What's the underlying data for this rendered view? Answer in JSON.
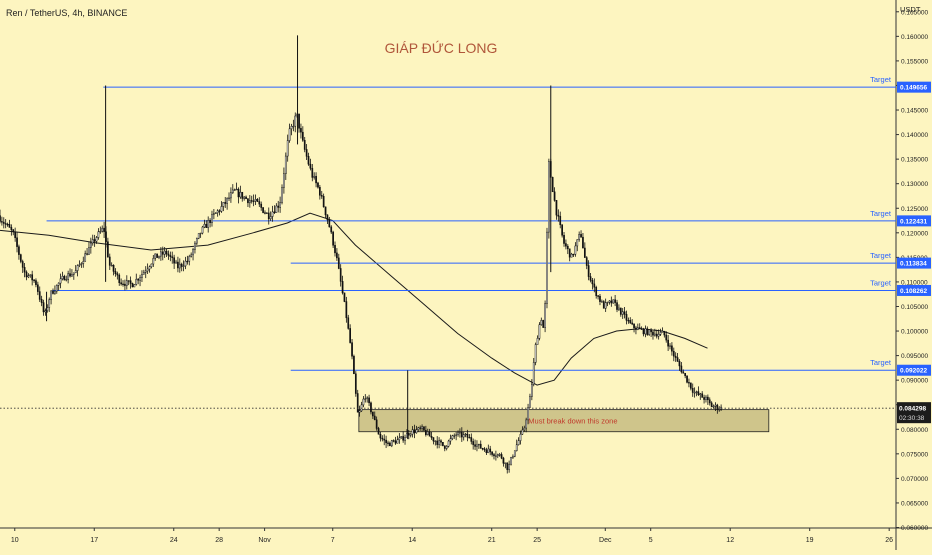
{
  "header": {
    "symbol_line": "Ren / TetherUS, 4h, BINANCE"
  },
  "chart_data": {
    "type": "candlestick",
    "title": "GIÁP ĐỨC LONG",
    "y_unit": "USDT",
    "ylim": [
      0.0599,
      0.1674
    ],
    "y_ticks": [
      "0.165000",
      "0.160000",
      "0.155000",
      "0.150000",
      "0.145000",
      "0.140000",
      "0.135000",
      "0.130000",
      "0.125000",
      "0.120000",
      "0.115000",
      "0.110000",
      "0.105000",
      "0.100000",
      "0.095000",
      "0.090000",
      "0.085000",
      "0.080000",
      "0.075000",
      "0.070000",
      "0.065000",
      "0.060000"
    ],
    "x_ticks": [
      {
        "label": "10",
        "day": 0
      },
      {
        "label": "17",
        "day": 7
      },
      {
        "label": "24",
        "day": 14
      },
      {
        "label": "28",
        "day": 18
      },
      {
        "label": "Nov",
        "day": 22
      },
      {
        "label": "7",
        "day": 28
      },
      {
        "label": "14",
        "day": 35
      },
      {
        "label": "21",
        "day": 42
      },
      {
        "label": "25",
        "day": 46
      },
      {
        "label": "Dec",
        "day": 52
      },
      {
        "label": "5",
        "day": 56
      },
      {
        "label": "12",
        "day": 63
      },
      {
        "label": "19",
        "day": 70
      },
      {
        "label": "26",
        "day": 77
      }
    ],
    "x_range_days": [
      -1.3,
      77.6
    ],
    "current_price": "0.084298",
    "countdown": "02:30:38",
    "target_label": "Target",
    "targets": [
      {
        "value": 0.149656,
        "label": "0.149656",
        "from_day": 7.8
      },
      {
        "value": 0.122431,
        "label": "0.122431",
        "from_day": 2.8
      },
      {
        "value": 0.113834,
        "label": "0.113834",
        "from_day": 24.3
      },
      {
        "value": 0.108262,
        "label": "0.108262",
        "from_day": 3.3
      },
      {
        "value": 0.092022,
        "label": "0.092022",
        "from_day": 24.3
      }
    ],
    "zone": {
      "label": "Must break down this zone",
      "low": 0.0795,
      "high": 0.084,
      "from_day": 30.3,
      "to_day": 66.4
    },
    "price_path": [
      [
        -1.3,
        0.1235
      ],
      [
        0.0,
        0.12
      ],
      [
        1.0,
        0.112
      ],
      [
        2.0,
        0.11
      ],
      [
        2.8,
        0.103
      ],
      [
        3.3,
        0.1075
      ],
      [
        4.5,
        0.111
      ],
      [
        5.5,
        0.112
      ],
      [
        6.5,
        0.116
      ],
      [
        7.3,
        0.119
      ],
      [
        8.0,
        0.121
      ],
      [
        8.5,
        0.1135
      ],
      [
        9.5,
        0.11
      ],
      [
        10.5,
        0.1095
      ],
      [
        11.5,
        0.112
      ],
      [
        12.5,
        0.115
      ],
      [
        13.5,
        0.116
      ],
      [
        14.5,
        0.113
      ],
      [
        15.5,
        0.1145
      ],
      [
        16.5,
        0.12
      ],
      [
        17.5,
        0.123
      ],
      [
        18.5,
        0.1255
      ],
      [
        19.5,
        0.1285
      ],
      [
        20.5,
        0.127
      ],
      [
        21.5,
        0.126
      ],
      [
        22.5,
        0.1235
      ],
      [
        23.5,
        0.126
      ],
      [
        24.3,
        0.14
      ],
      [
        25.0,
        0.144
      ],
      [
        25.5,
        0.1385
      ],
      [
        26.3,
        0.132
      ],
      [
        27.0,
        0.1285
      ],
      [
        27.8,
        0.122
      ],
      [
        28.5,
        0.115
      ],
      [
        29.3,
        0.104
      ],
      [
        29.8,
        0.096
      ],
      [
        30.4,
        0.0825
      ],
      [
        31.0,
        0.087
      ],
      [
        31.6,
        0.0835
      ],
      [
        32.3,
        0.0785
      ],
      [
        33.0,
        0.077
      ],
      [
        34.2,
        0.078
      ],
      [
        35.0,
        0.0795
      ],
      [
        36.0,
        0.08
      ],
      [
        37.0,
        0.078
      ],
      [
        38.0,
        0.0765
      ],
      [
        39.0,
        0.079
      ],
      [
        40.0,
        0.0785
      ],
      [
        41.0,
        0.0765
      ],
      [
        42.0,
        0.0755
      ],
      [
        43.0,
        0.0745
      ],
      [
        43.6,
        0.072
      ],
      [
        44.2,
        0.076
      ],
      [
        45.0,
        0.08
      ],
      [
        45.6,
        0.087
      ],
      [
        46.0,
        0.0965
      ],
      [
        46.5,
        0.103
      ],
      [
        46.8,
        0.0995
      ],
      [
        47.2,
        0.134
      ],
      [
        47.8,
        0.125
      ],
      [
        48.5,
        0.118
      ],
      [
        49.2,
        0.115
      ],
      [
        50.0,
        0.12
      ],
      [
        50.5,
        0.113
      ],
      [
        51.2,
        0.1085
      ],
      [
        52.0,
        0.105
      ],
      [
        52.8,
        0.106
      ],
      [
        53.5,
        0.104
      ],
      [
        54.5,
        0.101
      ],
      [
        55.5,
        0.1
      ],
      [
        56.5,
        0.0995
      ],
      [
        57.3,
        0.0995
      ],
      [
        58.0,
        0.096
      ],
      [
        59.0,
        0.0915
      ],
      [
        60.0,
        0.0875
      ],
      [
        61.0,
        0.0862
      ],
      [
        61.5,
        0.0848
      ],
      [
        62.3,
        0.0843
      ]
    ],
    "wick_spikes": [
      {
        "day": 8.0,
        "high": 0.15,
        "low": 0.11
      },
      {
        "day": 24.9,
        "high": 0.1602,
        "low": 0.138
      },
      {
        "day": 47.2,
        "high": 0.15,
        "low": 0.112
      },
      {
        "day": 34.6,
        "high": 0.092,
        "low": 0.078
      },
      {
        "day": 2.8,
        "high": 0.108,
        "low": 0.102
      }
    ],
    "moving_average": [
      [
        -1.3,
        0.1205
      ],
      [
        3.0,
        0.1195
      ],
      [
        7.0,
        0.118
      ],
      [
        12.0,
        0.1165
      ],
      [
        17.0,
        0.1175
      ],
      [
        21.0,
        0.12
      ],
      [
        24.0,
        0.122
      ],
      [
        26.0,
        0.124
      ],
      [
        28.0,
        0.1225
      ],
      [
        30.0,
        0.1175
      ],
      [
        33.0,
        0.1115
      ],
      [
        36.0,
        0.1055
      ],
      [
        39.0,
        0.0995
      ],
      [
        42.0,
        0.0945
      ],
      [
        44.0,
        0.0915
      ],
      [
        46.0,
        0.089
      ],
      [
        47.5,
        0.09
      ],
      [
        49.0,
        0.0945
      ],
      [
        51.0,
        0.0985
      ],
      [
        53.0,
        0.1
      ],
      [
        55.0,
        0.1005
      ],
      [
        57.0,
        0.1
      ],
      [
        59.0,
        0.0985
      ],
      [
        61.0,
        0.0965
      ]
    ]
  }
}
